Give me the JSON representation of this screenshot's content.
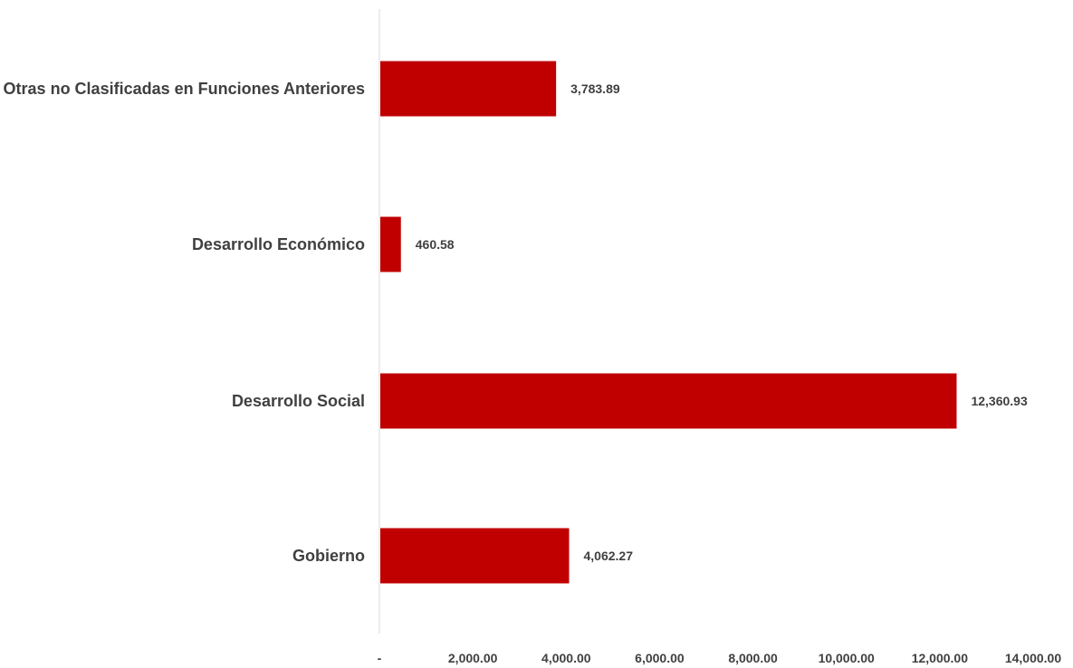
{
  "chart_data": {
    "type": "bar",
    "orientation": "horizontal",
    "categories": [
      "Otras no Clasificadas en Funciones Anteriores",
      "Desarrollo Económico",
      "Desarrollo Social",
      "Gobierno"
    ],
    "values": [
      3783.89,
      460.58,
      12360.93,
      4062.27
    ],
    "value_labels": [
      "3,783.89",
      "460.58",
      "12,360.93",
      "4,062.27"
    ],
    "xlim": [
      0,
      14000
    ],
    "x_ticks": [
      0,
      2000,
      4000,
      6000,
      8000,
      10000,
      12000,
      14000
    ],
    "x_tick_labels": [
      "-",
      "2,000.00",
      "4,000.00",
      "6,000.00",
      "8,000.00",
      "10,000.00",
      "12,000.00",
      "14,000.00"
    ],
    "bar_color": "#C00000",
    "grid": false,
    "legend": "none"
  }
}
